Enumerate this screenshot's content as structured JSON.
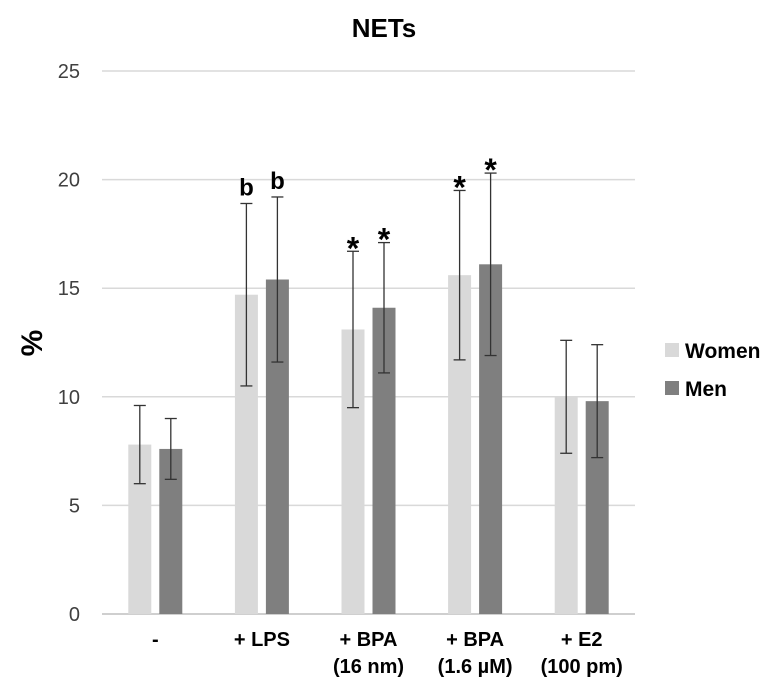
{
  "chart_data": {
    "type": "bar",
    "title": "NETs",
    "ylabel": "%",
    "xlabel": "",
    "ylim": [
      0,
      25
    ],
    "yticks": [
      0,
      5,
      10,
      15,
      20,
      25
    ],
    "grid": true,
    "legend_position": "right",
    "categories": [
      [
        "-"
      ],
      [
        "+ LPS"
      ],
      [
        "+ BPA",
        "(16 nm)"
      ],
      [
        "+ BPA",
        "(1.6 µM)"
      ],
      [
        "+ E2",
        "(100 pm)"
      ]
    ],
    "series": [
      {
        "name": "Women",
        "color": "#d9d9d9",
        "values": [
          7.8,
          14.7,
          13.1,
          15.6,
          10.0
        ],
        "error": [
          1.8,
          4.2,
          3.6,
          3.9,
          2.6
        ],
        "annotations": [
          "",
          "b",
          "*",
          "*",
          ""
        ]
      },
      {
        "name": "Men",
        "color": "#7f7f7f",
        "values": [
          7.6,
          15.4,
          14.1,
          16.1,
          9.8
        ],
        "error": [
          1.4,
          3.8,
          3.0,
          4.2,
          2.6
        ],
        "annotations": [
          "",
          "b",
          "*",
          "*",
          ""
        ]
      }
    ]
  }
}
